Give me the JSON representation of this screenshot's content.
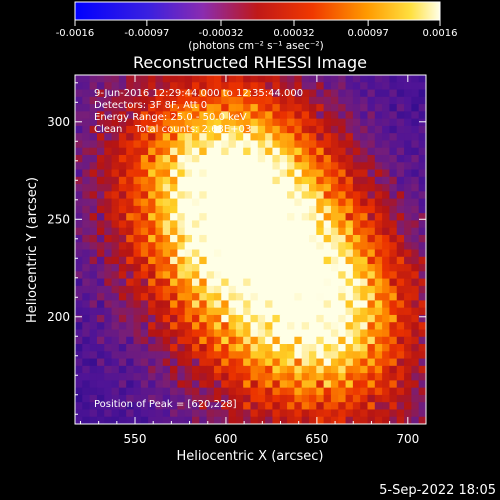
{
  "chart_data": {
    "type": "heatmap",
    "title": "Reconstructed RHESSI Image",
    "xlabel": "Heliocentric X (arcsec)",
    "ylabel": "Heliocentric Y (arcsec)",
    "xlim": [
      517,
      710
    ],
    "ylim": [
      145,
      324
    ],
    "x_ticks": [
      550,
      600,
      650,
      700
    ],
    "y_ticks": [
      200,
      250,
      300
    ],
    "colorbar": {
      "ticks": [
        "-0.0016",
        "-0.00097",
        "-0.00032",
        "0.00032",
        "0.00097",
        "0.0016"
      ],
      "range": [
        -0.0016,
        0.0016
      ],
      "label": "(photons cm⁻² s⁻¹ asec⁻²)"
    },
    "annotations": [
      "9-Jun-2016 12:29:44.000 to 12:35:44.000",
      "Detectors: 3F 8F, Att 0",
      "Energy Range: 25.0 - 50.0 keV",
      "Clean    Total counts: 2.63E+03"
    ],
    "peak_label": "Position of Peak = [620,228]",
    "peak": {
      "x": 620,
      "y": 228
    },
    "footer_date": "5-Sep-2022 18:05",
    "grid": false
  }
}
